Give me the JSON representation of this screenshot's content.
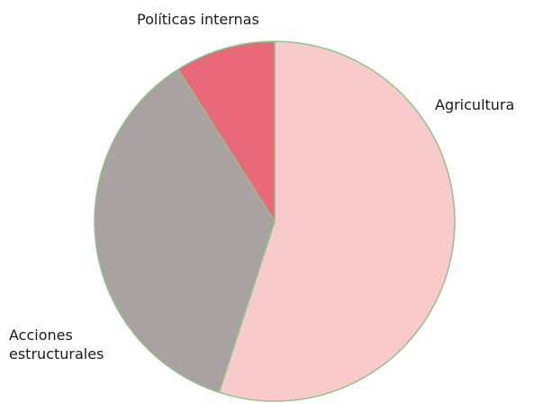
{
  "chart_data": {
    "type": "pie",
    "categories": [
      "Agricultura",
      "Acciones estructurales",
      "Políticas internas"
    ],
    "values": [
      55,
      36,
      9
    ],
    "colors": [
      "#f9cacc",
      "#a9a2a0",
      "#e9697b"
    ]
  }
}
